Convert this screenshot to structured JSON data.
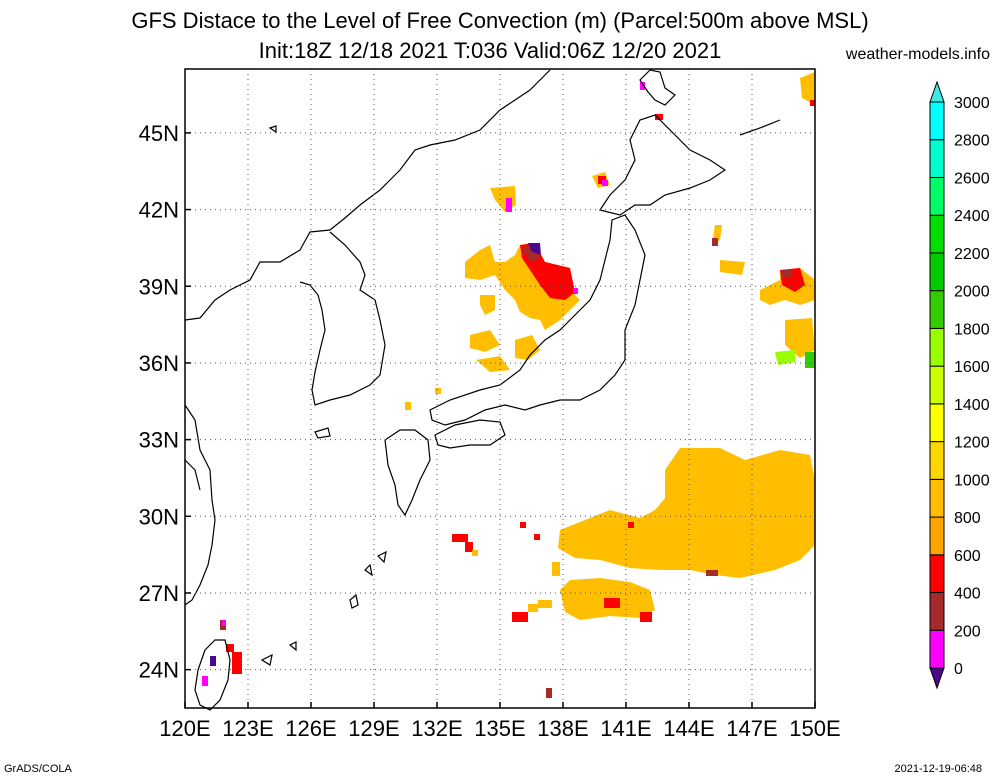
{
  "title": {
    "line1": "GFS Distace to the Level of Free Convection (m) (Parcel:500m above MSL)",
    "line2": "Init:18Z 12/18 2021 T:036 Valid:06Z 12/20 2021"
  },
  "source_label": "weather-models.info",
  "footer": {
    "left": "GrADS/COLA",
    "right": "2021-12-19-06:48"
  },
  "map": {
    "lon_range": [
      120,
      150
    ],
    "lat_range": [
      22.5,
      47.5
    ],
    "lon_ticks": [
      "120E",
      "123E",
      "126E",
      "129E",
      "132E",
      "135E",
      "138E",
      "141E",
      "144E",
      "147E",
      "150E"
    ],
    "lat_ticks": [
      "24N",
      "27N",
      "30N",
      "33N",
      "36N",
      "39N",
      "42N",
      "45N"
    ],
    "grid": "dotted"
  },
  "colorbar": {
    "levels": [
      "0",
      "200",
      "400",
      "600",
      "800",
      "1000",
      "1200",
      "1400",
      "1600",
      "1800",
      "2000",
      "2200",
      "2400",
      "2600",
      "2800",
      "3000"
    ],
    "colors": [
      "#4b0a8c",
      "#ff00ff",
      "#a52a2a",
      "#ff0000",
      "#ffa500",
      "#ffbf00",
      "#ffd700",
      "#ffff00",
      "#ccff00",
      "#99ff00",
      "#33cc00",
      "#00cc00",
      "#00e000",
      "#00ff66",
      "#00ffcc",
      "#00ffff",
      "#40e8e8"
    ]
  }
}
